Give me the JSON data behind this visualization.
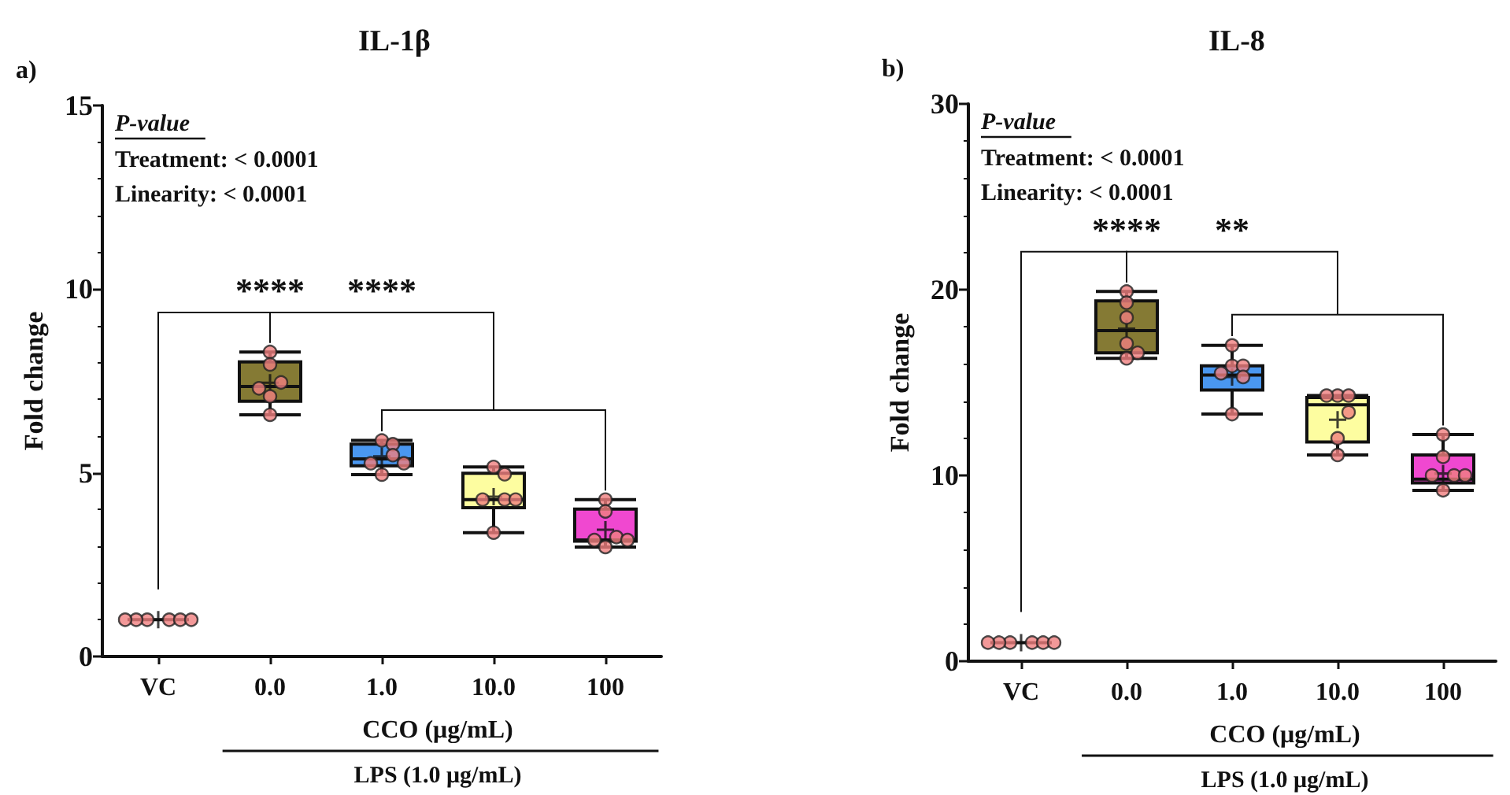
{
  "chart_data": [
    {
      "type": "box",
      "title": "IL-1β",
      "ylabel": "Fold change",
      "xlabel": "CCO (μg/mL)",
      "annotations": [
        "a)",
        "P-value",
        "Treatment: < 0.0001",
        "Linearity: < 0.0001",
        "****",
        "****",
        "LPS (1.0 μg/mL)"
      ],
      "categories": [
        "VC",
        "0.0",
        "1.0",
        "10.0",
        "100"
      ],
      "ylim": [
        0,
        15
      ],
      "yticks": [
        0,
        5,
        10,
        15
      ],
      "series": [
        {
          "type": "box",
          "colors": [
            null,
            "#857a34",
            "#4a97f0",
            "#fdfda0",
            "#f048d0"
          ],
          "boxes": [
            {
              "low": 1,
              "q1": 1,
              "median": 1,
              "q3": 1,
              "high": 1,
              "mean": 1
            },
            {
              "low": 6.58,
              "q1": 6.95,
              "median": 7.35,
              "q3": 8.02,
              "high": 8.29,
              "mean": 7.45
            },
            {
              "low": 4.95,
              "q1": 5.19,
              "median": 5.38,
              "q3": 5.78,
              "high": 5.88,
              "mean": 5.45
            },
            {
              "low": 3.37,
              "q1": 4.05,
              "median": 4.27,
              "q3": 4.99,
              "high": 5.16,
              "mean": 4.35
            },
            {
              "low": 2.98,
              "q1": 3.14,
              "median": 3.17,
              "q3": 4.01,
              "high": 4.27,
              "mean": 3.45
            }
          ]
        },
        {
          "type": "scatter",
          "color": "#f08080",
          "marker": "circle",
          "x": [
            "VC",
            "VC",
            "VC",
            "VC",
            "VC",
            "VC",
            "0.0",
            "0.0",
            "0.0",
            "0.0",
            "0.0",
            "0.0",
            "1.0",
            "1.0",
            "1.0",
            "1.0",
            "1.0",
            "1.0",
            "10.0",
            "10.0",
            "10.0",
            "10.0",
            "10.0",
            "10.0",
            "100",
            "100",
            "100",
            "100",
            "100",
            "100"
          ],
          "values": [
            1,
            1,
            1,
            1,
            1,
            1,
            8.29,
            7.95,
            7.46,
            7.3,
            7.08,
            6.58,
            5.88,
            5.78,
            5.48,
            5.26,
            5.26,
            4.95,
            5.16,
            4.96,
            4.27,
            4.27,
            4.27,
            3.37,
            4.27,
            3.95,
            3.25,
            3.17,
            3.17,
            2.98
          ]
        }
      ]
    },
    {
      "type": "box",
      "title": "IL-8",
      "ylabel": "Fold change",
      "xlabel": "CCO (μg/mL)",
      "annotations": [
        "b)",
        "P-value",
        "Treatment: < 0.0001",
        "Linearity: < 0.0001",
        "****",
        "**",
        "LPS (1.0 μg/mL)"
      ],
      "categories": [
        "VC",
        "0.0",
        "1.0",
        "10.0",
        "100"
      ],
      "ylim": [
        0,
        30
      ],
      "yticks": [
        0,
        10,
        20,
        30
      ],
      "series": [
        {
          "type": "box",
          "colors": [
            null,
            "#857a34",
            "#4a97f0",
            "#fdfda0",
            "#f048d0"
          ],
          "boxes": [
            {
              "low": 1,
              "q1": 1,
              "median": 1,
              "q3": 1,
              "high": 1,
              "mean": 1
            },
            {
              "low": 16.3,
              "q1": 16.6,
              "median": 17.8,
              "q3": 19.4,
              "high": 19.9,
              "mean": 17.9
            },
            {
              "low": 13.3,
              "q1": 14.6,
              "median": 15.4,
              "q3": 15.9,
              "high": 17,
              "mean": 15.3
            },
            {
              "low": 11.1,
              "q1": 11.8,
              "median": 13.8,
              "q3": 14.2,
              "high": 14.3,
              "mean": 13
            },
            {
              "low": 9.2,
              "q1": 9.6,
              "median": 9.8,
              "q3": 11.1,
              "high": 12.2,
              "mean": 10.1
            }
          ]
        },
        {
          "type": "scatter",
          "color": "#f08080",
          "marker": "circle",
          "x": [
            "VC",
            "VC",
            "VC",
            "VC",
            "VC",
            "VC",
            "0.0",
            "0.0",
            "0.0",
            "0.0",
            "0.0",
            "0.0",
            "1.0",
            "1.0",
            "1.0",
            "1.0",
            "1.0",
            "1.0",
            "10.0",
            "10.0",
            "10.0",
            "10.0",
            "10.0",
            "10.0",
            "100",
            "100",
            "100",
            "100",
            "100",
            "100"
          ],
          "values": [
            1,
            1,
            1,
            1,
            1,
            1,
            19.9,
            19.3,
            18.5,
            17.1,
            16.6,
            16.3,
            17,
            15.9,
            15.9,
            15.5,
            15.3,
            13.3,
            14.3,
            14.3,
            14.3,
            13.4,
            12,
            11.1,
            12.2,
            11,
            10,
            10,
            10,
            9.2
          ]
        }
      ]
    }
  ]
}
